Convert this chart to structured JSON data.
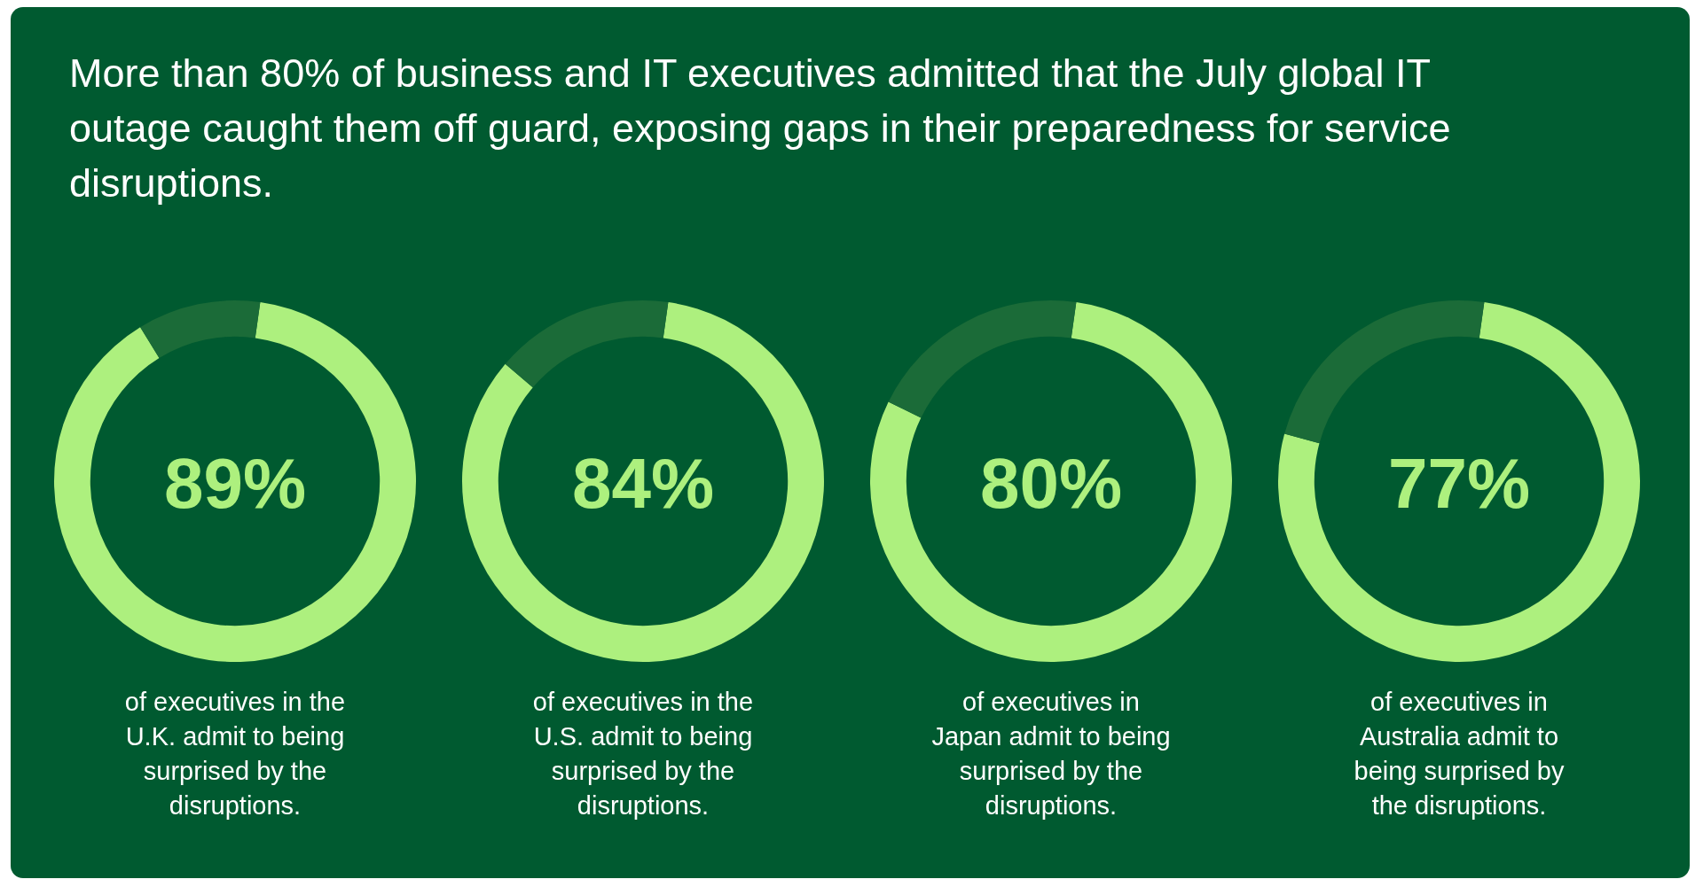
{
  "chart_data": [
    {
      "type": "other",
      "title": "More than 80% of business and IT executives admitted that the July global IT outage caught them off guard, exposing gaps in their preparedness for service disruptions."
    },
    {
      "type": "donut",
      "categories": [
        null,
        null
      ],
      "values": [
        89,
        11
      ],
      "colors": [
        "#adf07e",
        "#1b6b38"
      ],
      "value_labels": [
        "89%",
        null
      ],
      "annotations": [
        "of executives in the U.K. admit to being surprised by the disruptions."
      ]
    },
    {
      "type": "donut",
      "categories": [
        null,
        null
      ],
      "values": [
        84,
        16
      ],
      "colors": [
        "#adf07e",
        "#1b6b38"
      ],
      "value_labels": [
        "84%",
        null
      ],
      "annotations": [
        "of executives in the U.S. admit to being surprised by the disruptions."
      ]
    },
    {
      "type": "donut",
      "categories": [
        null,
        null
      ],
      "values": [
        80,
        20
      ],
      "colors": [
        "#adf07e",
        "#1b6b38"
      ],
      "value_labels": [
        "80%",
        null
      ],
      "annotations": [
        "of executives in Japan admit to being surprised by the disruptions."
      ]
    },
    {
      "type": "donut",
      "categories": [
        null,
        null
      ],
      "values": [
        77,
        23
      ],
      "colors": [
        "#adf07e",
        "#1b6b38"
      ],
      "value_labels": [
        "77%",
        null
      ],
      "annotations": [
        "of executives in Australia admit to being surprised by the disruptions."
      ]
    }
  ]
}
